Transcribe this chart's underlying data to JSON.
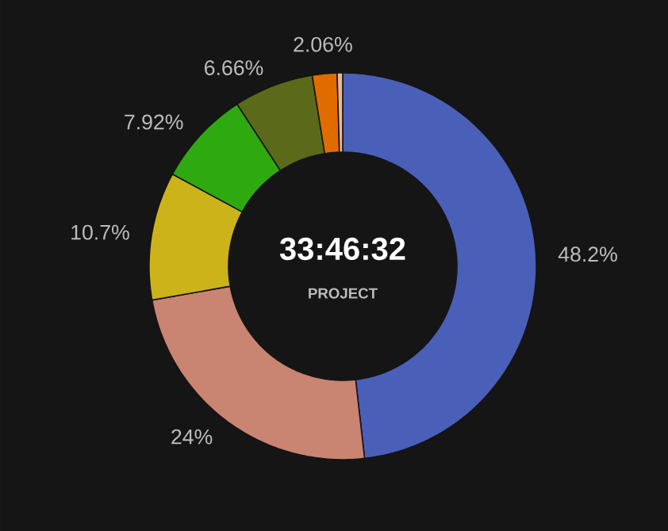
{
  "chart_data": {
    "type": "donut",
    "title": "33:46:32",
    "subtitle": "PROJECT",
    "categories": [
      null,
      null,
      null,
      null,
      null,
      null,
      null
    ],
    "values": [
      48.2,
      24,
      10.7,
      7.92,
      6.66,
      2.06,
      0.46
    ],
    "value_labels": [
      "48.2%",
      "24%",
      "10.7%",
      "7.92%",
      "6.66%",
      "2.06%",
      null
    ],
    "colors": [
      "#4a5fb8",
      "#c98472",
      "#cdb31a",
      "#2eaa10",
      "#5b6a1a",
      "#e06c00",
      "#e8b89a"
    ]
  }
}
